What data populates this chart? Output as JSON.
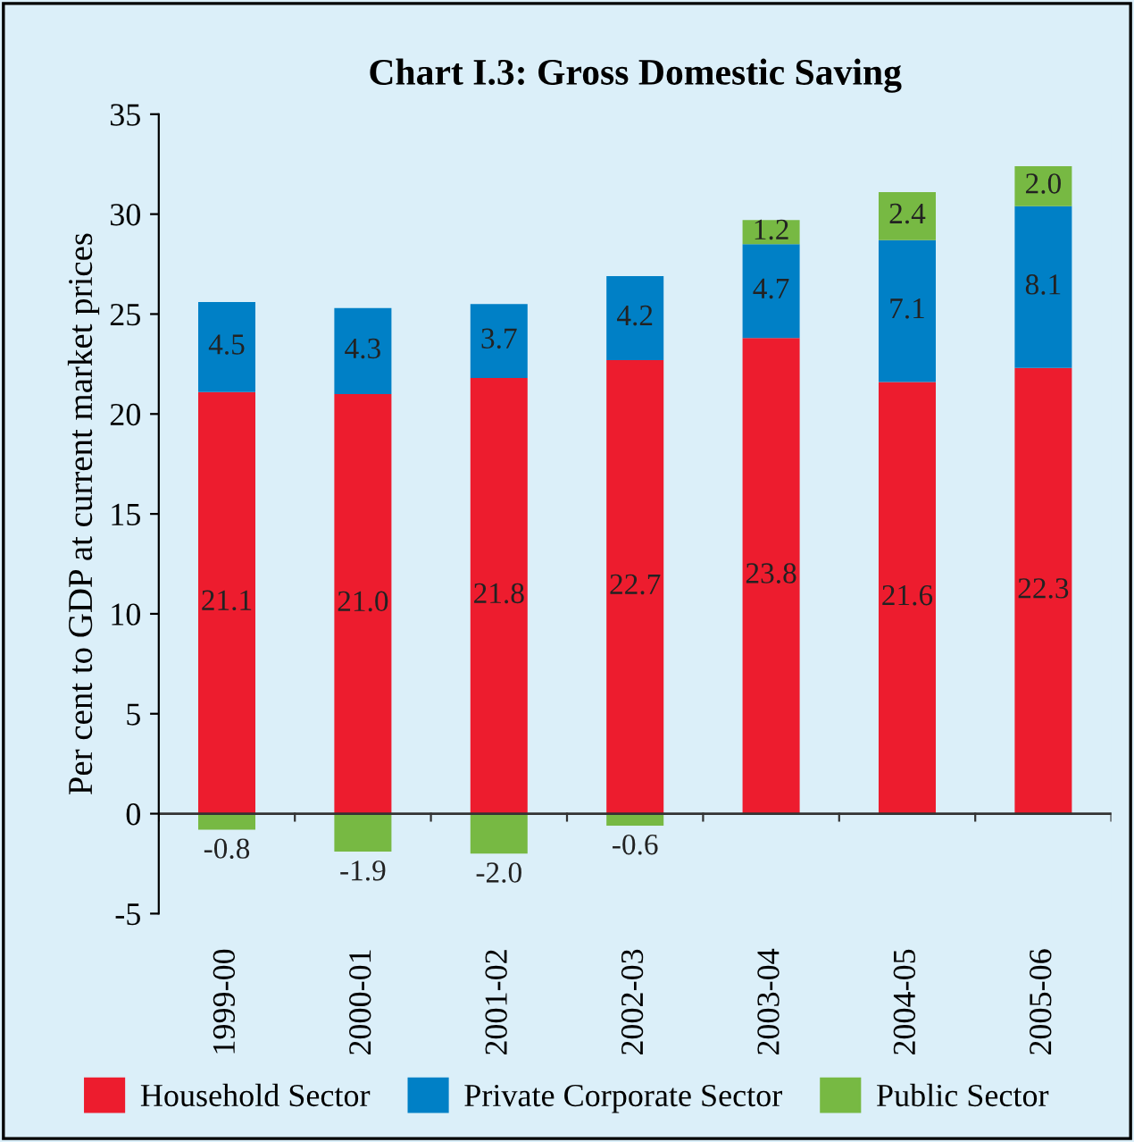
{
  "chart_data": {
    "type": "bar",
    "stacked": true,
    "title": "Chart I.3: Gross Domestic Saving",
    "ylabel": "Per cent to GDP at current market prices",
    "categories": [
      "1999-00",
      "2000-01",
      "2001-02",
      "2002-03",
      "2003-04",
      "2004-05",
      "2005-06"
    ],
    "series": [
      {
        "name": "Household Sector",
        "color": "#ed1c2e",
        "values": [
          21.1,
          21.0,
          21.8,
          22.7,
          23.8,
          21.6,
          22.3
        ],
        "value_labels": [
          "21.1",
          "21.0",
          "21.8",
          "22.7",
          "23.8",
          "21.6",
          "22.3"
        ]
      },
      {
        "name": "Private Corporate Sector",
        "color": "#0080c6",
        "values": [
          4.5,
          4.3,
          3.7,
          4.2,
          4.7,
          7.1,
          8.1
        ],
        "value_labels": [
          "4.5",
          "4.3",
          "3.7",
          "4.2",
          "4.7",
          "7.1",
          "8.1"
        ]
      },
      {
        "name": "Public Sector",
        "color": "#77b943",
        "values": [
          -0.8,
          -1.9,
          -2.0,
          -0.6,
          1.2,
          2.4,
          2.0
        ],
        "value_labels": [
          "-0.8",
          "-1.9",
          "-2.0",
          "-0.6",
          "1.2",
          "2.4",
          "2.0"
        ]
      }
    ],
    "ylim": [
      -5,
      35
    ],
    "yticks": [
      -5,
      0,
      5,
      10,
      15,
      20,
      25,
      30,
      35
    ],
    "legend": "bottom"
  }
}
